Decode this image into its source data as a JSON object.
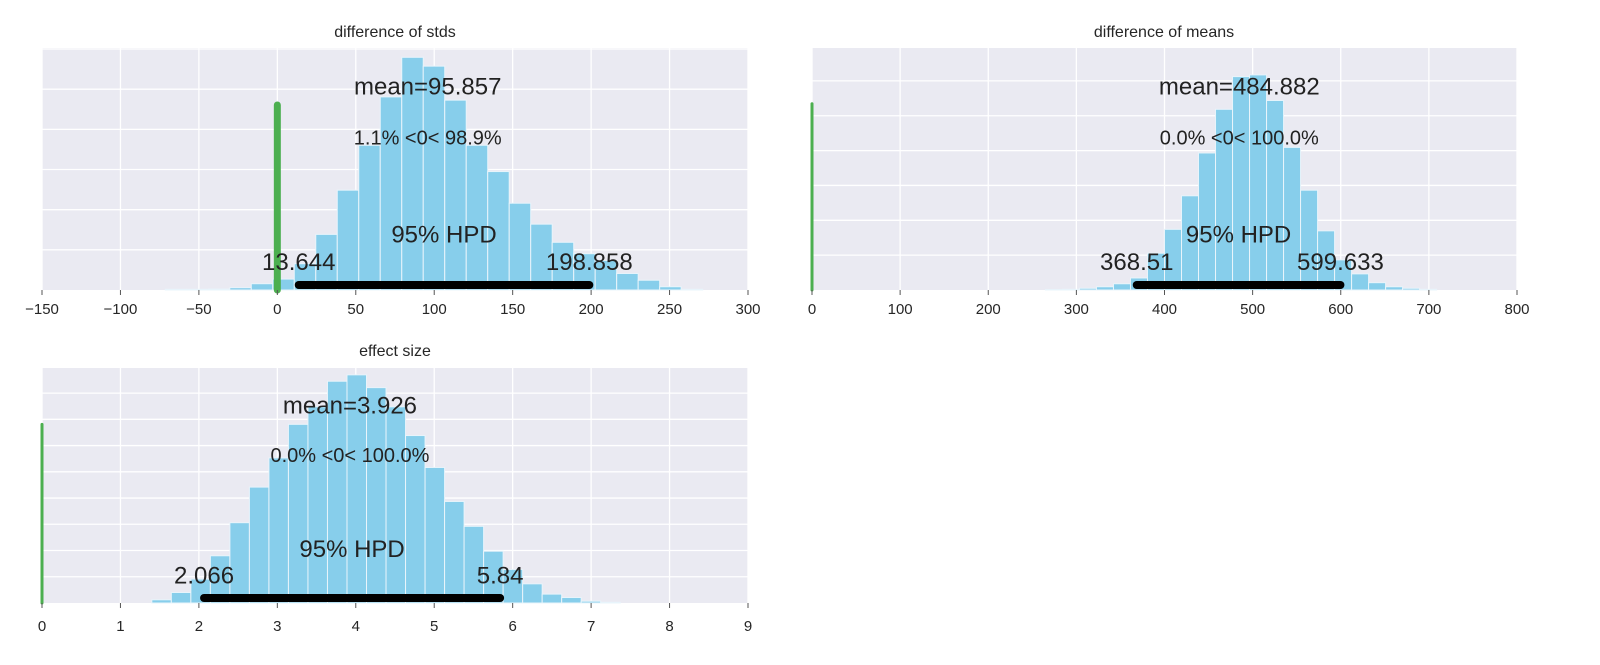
{
  "colors": {
    "axes_bg": "#eaeaf2",
    "grid": "#ffffff",
    "bar": "#87ceeb",
    "bar_edge": "#e8f4fb",
    "ref_line": "#4caf50",
    "hpd_line": "#000000",
    "text": "#222222"
  },
  "chart_data": [
    {
      "type": "bar",
      "title": "difference of stds",
      "xlim": [
        -150,
        300
      ],
      "xticks": [
        -150,
        -100,
        -50,
        0,
        50,
        100,
        150,
        200,
        250,
        300
      ],
      "xtick_labels": [
        "−150",
        "−100",
        "−50",
        "0",
        "50",
        "100",
        "150",
        "200",
        "250",
        "300"
      ],
      "bin_start": -71.4,
      "bin_width": 13.7,
      "relative_heights": [
        0.003,
        0.003,
        0.004,
        0.01,
        0.027,
        0.047,
        0.113,
        0.239,
        0.429,
        0.622,
        0.83,
        1.0,
        0.962,
        0.816,
        0.622,
        0.509,
        0.373,
        0.283,
        0.205,
        0.156,
        0.127,
        0.071,
        0.042,
        0.014,
        0.003
      ],
      "ylim": [
        0,
        1.04
      ],
      "ygrid_step": 0.1726,
      "mean": 95.857,
      "mean_label": "mean=95.857",
      "ref_val": 0,
      "ref_line_height": 0.795,
      "ref_label": "1.1% <0< 98.9%",
      "hpd": [
        13.644,
        198.858
      ],
      "hpd_title": "95% HPD",
      "hpd_low_label": "13.644",
      "hpd_high_label": "198.858"
    },
    {
      "type": "bar",
      "title": "difference of means",
      "xlim": [
        0,
        800
      ],
      "xticks": [
        0,
        100,
        200,
        300,
        400,
        500,
        600,
        700,
        800
      ],
      "xtick_labels": [
        "0",
        "100",
        "200",
        "300",
        "400",
        "500",
        "600",
        "700",
        "800"
      ],
      "bin_start": 264.9,
      "bin_width": 19.3,
      "relative_heights": [
        0.002,
        0.003,
        0.008,
        0.015,
        0.029,
        0.056,
        0.171,
        0.282,
        0.438,
        0.637,
        0.84,
        0.992,
        1.0,
        0.881,
        0.663,
        0.464,
        0.275,
        0.14,
        0.075,
        0.034,
        0.015,
        0.008,
        0.003
      ],
      "ylim": [
        0,
        1.125
      ],
      "ygrid_step": 0.162,
      "mean": 484.882,
      "mean_label": "mean=484.882",
      "ref_val": 0,
      "ref_line_height": 0.866,
      "ref_label": "0.0% <0< 100.0%",
      "hpd": [
        368.51,
        599.633
      ],
      "hpd_title": "95% HPD",
      "hpd_low_label": "368.51",
      "hpd_high_label": "599.633"
    },
    {
      "type": "bar",
      "title": "effect size",
      "xlim": [
        0,
        9
      ],
      "xticks": [
        0,
        1,
        2,
        3,
        4,
        5,
        6,
        7,
        8,
        9
      ],
      "xtick_labels": [
        "0",
        "1",
        "2",
        "3",
        "4",
        "5",
        "6",
        "7",
        "8",
        "9"
      ],
      "bin_start": 1.4,
      "bin_width": 0.2488,
      "relative_heights": [
        0.014,
        0.046,
        0.105,
        0.207,
        0.352,
        0.508,
        0.636,
        0.783,
        0.86,
        0.972,
        1.0,
        0.944,
        0.86,
        0.734,
        0.594,
        0.445,
        0.336,
        0.227,
        0.147,
        0.084,
        0.039,
        0.024,
        0.008,
        0.003
      ],
      "ylim": [
        0,
        1.03
      ],
      "ygrid_step": 0.115,
      "mean": 3.926,
      "mean_label": "mean=3.926",
      "ref_val": 0,
      "ref_line_height": 0.783,
      "ref_label": "0.0% <0< 100.0%",
      "hpd": [
        2.066,
        5.84
      ],
      "hpd_title": "95% HPD",
      "hpd_low_label": "2.066",
      "hpd_high_label": "5.84"
    }
  ]
}
